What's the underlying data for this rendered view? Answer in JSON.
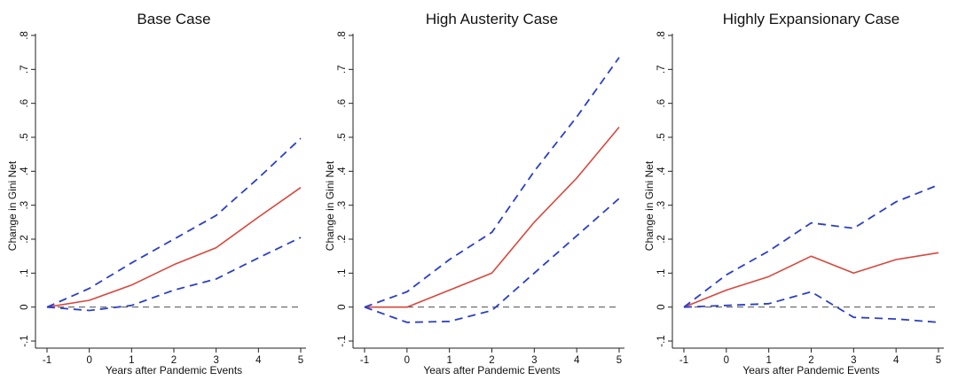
{
  "chart_data": [
    {
      "type": "line",
      "title": "Base Case",
      "xlabel": "Years after Pandemic Events",
      "ylabel": "Change in Gini Net",
      "x": [
        -1,
        0,
        1,
        2,
        3,
        4,
        5
      ],
      "xticks": [
        "-1",
        "0",
        "1",
        "2",
        "3",
        "4",
        "5"
      ],
      "yticks": [
        "-.1",
        "0",
        ".1",
        ".2",
        ".3",
        ".4",
        ".5",
        ".6",
        ".7",
        ".8"
      ],
      "yticks_values": [
        -0.1,
        0,
        0.1,
        0.2,
        0.3,
        0.4,
        0.5,
        0.6,
        0.7,
        0.8
      ],
      "xlim": [
        -1,
        5
      ],
      "ylim": [
        -0.1,
        0.8
      ],
      "zero_line": true,
      "grid": false,
      "series": [
        {
          "role": "estimate",
          "style": "solid",
          "color": "#d8473b",
          "values": [
            0,
            0.02,
            0.065,
            0.125,
            0.175,
            0.265,
            0.352
          ]
        },
        {
          "role": "upper",
          "style": "dashed",
          "color": "#2b3fc8",
          "values": [
            0,
            0.055,
            0.13,
            0.2,
            0.27,
            0.38,
            0.497
          ]
        },
        {
          "role": "lower",
          "style": "dashed",
          "color": "#2b3fc8",
          "values": [
            0,
            -0.01,
            0.005,
            0.05,
            0.083,
            0.145,
            0.205
          ]
        }
      ]
    },
    {
      "type": "line",
      "title": "High Austerity Case",
      "xlabel": "Years after Pandemic Events",
      "ylabel": "Change in Gini Net",
      "x": [
        -1,
        0,
        1,
        2,
        3,
        4,
        5
      ],
      "xticks": [
        "-1",
        "0",
        "1",
        "2",
        "3",
        "4",
        "5"
      ],
      "yticks": [
        "-.1",
        "0",
        ".1",
        ".2",
        ".3",
        ".4",
        ".5",
        ".6",
        ".7",
        ".8"
      ],
      "yticks_values": [
        -0.1,
        0,
        0.1,
        0.2,
        0.3,
        0.4,
        0.5,
        0.6,
        0.7,
        0.8
      ],
      "xlim": [
        -1,
        5
      ],
      "ylim": [
        -0.1,
        0.8
      ],
      "zero_line": true,
      "grid": false,
      "series": [
        {
          "role": "estimate",
          "style": "solid",
          "color": "#d8473b",
          "values": [
            0,
            0,
            0.05,
            0.1,
            0.25,
            0.38,
            0.53
          ]
        },
        {
          "role": "upper",
          "style": "dashed",
          "color": "#2b3fc8",
          "values": [
            0,
            0.045,
            0.14,
            0.22,
            0.4,
            0.56,
            0.735
          ]
        },
        {
          "role": "lower",
          "style": "dashed",
          "color": "#2b3fc8",
          "values": [
            0,
            -0.045,
            -0.042,
            -0.01,
            0.1,
            0.21,
            0.32
          ]
        }
      ]
    },
    {
      "type": "line",
      "title": "Highly Expansionary Case",
      "xlabel": "Years after Pandemic Events",
      "ylabel": "Change in Gini Net",
      "x": [
        -1,
        0,
        1,
        2,
        3,
        4,
        5
      ],
      "xticks": [
        "-1",
        "0",
        "1",
        "2",
        "3",
        "4",
        "5"
      ],
      "yticks": [
        "-.1",
        "0",
        ".1",
        ".2",
        ".3",
        ".4",
        ".5",
        ".6",
        ".7",
        ".8"
      ],
      "yticks_values": [
        -0.1,
        0,
        0.1,
        0.2,
        0.3,
        0.4,
        0.5,
        0.6,
        0.7,
        0.8
      ],
      "xlim": [
        -1,
        5
      ],
      "ylim": [
        -0.1,
        0.8
      ],
      "zero_line": true,
      "grid": false,
      "series": [
        {
          "role": "estimate",
          "style": "solid",
          "color": "#d8473b",
          "values": [
            0,
            0.05,
            0.09,
            0.15,
            0.1,
            0.14,
            0.16
          ]
        },
        {
          "role": "upper",
          "style": "dashed",
          "color": "#2b3fc8",
          "values": [
            0,
            0.095,
            0.165,
            0.248,
            0.232,
            0.31,
            0.36
          ]
        },
        {
          "role": "lower",
          "style": "dashed",
          "color": "#2b3fc8",
          "values": [
            0,
            0.005,
            0.01,
            0.045,
            -0.03,
            -0.035,
            -0.045
          ]
        }
      ]
    }
  ]
}
